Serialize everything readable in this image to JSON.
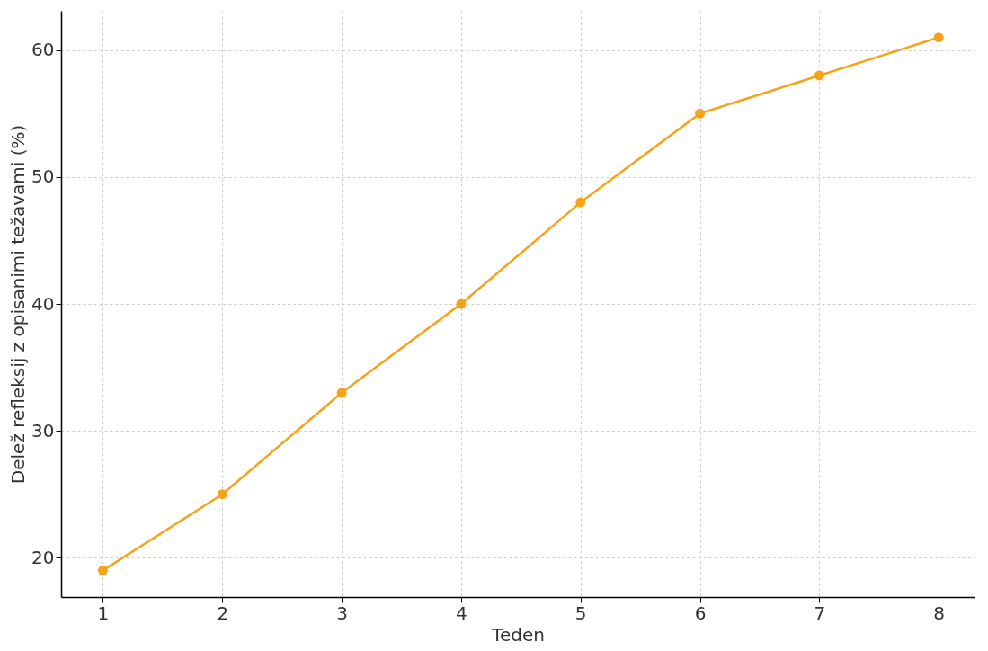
{
  "chart_data": {
    "type": "line",
    "xlabel": "Teden",
    "ylabel": "Delež refleksij z opisanimi težavami (%)",
    "x": [
      1,
      2,
      3,
      4,
      5,
      6,
      7,
      8
    ],
    "series": [
      {
        "color": "#f5a31a",
        "values": [
          19,
          25,
          33,
          40,
          48,
          55,
          58,
          61
        ]
      }
    ],
    "xlim": [
      0.65,
      8.3
    ],
    "xticks": [
      1,
      2,
      3,
      4,
      5,
      6,
      7,
      8
    ],
    "ylim": [
      16.9,
      63.1
    ],
    "yticks": [
      20,
      30,
      40,
      50,
      60
    ],
    "grid": true,
    "marker": "circle",
    "line_style": "solid"
  }
}
